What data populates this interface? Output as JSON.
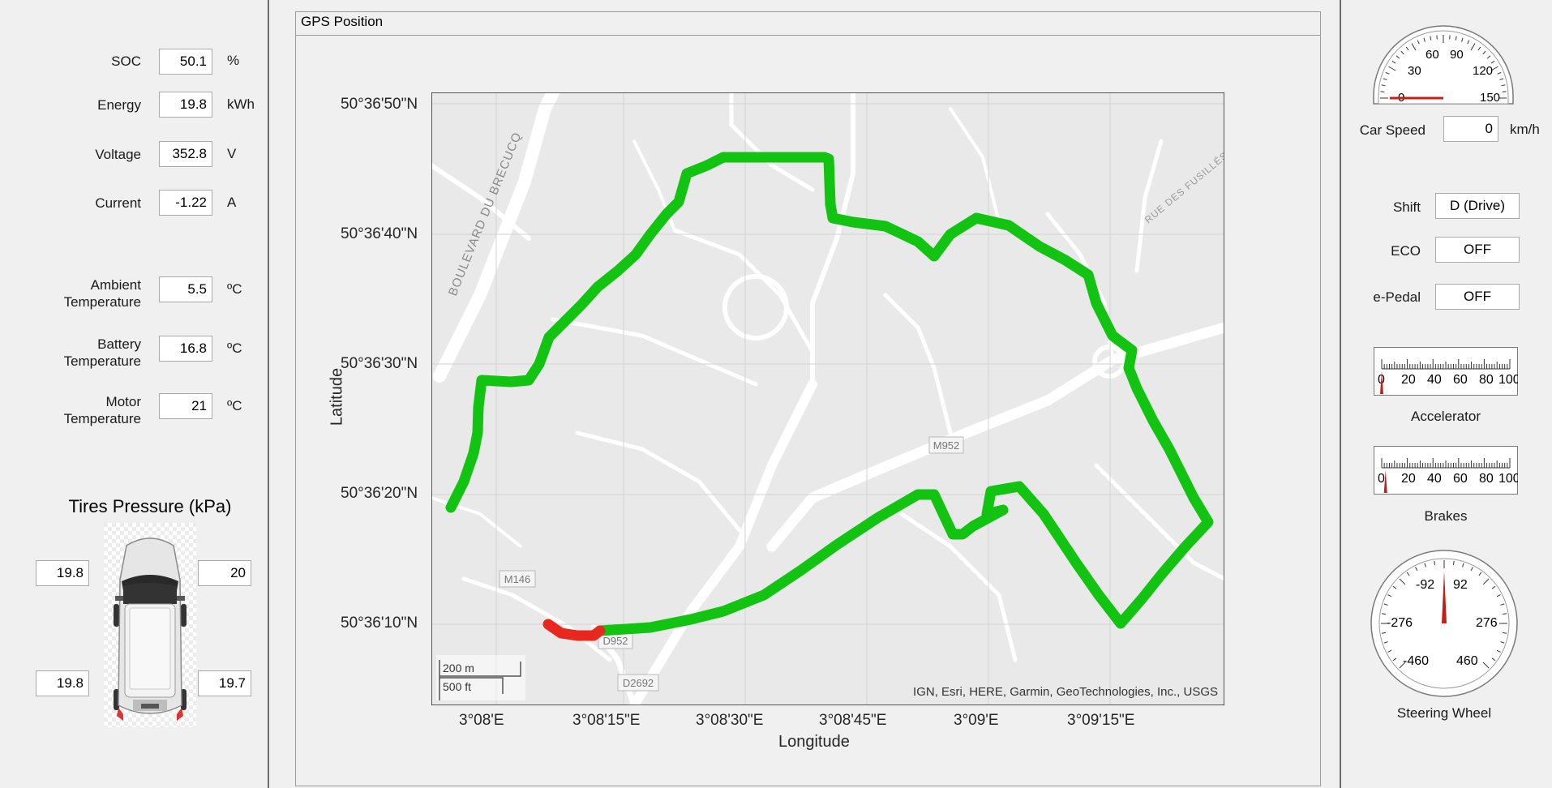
{
  "left_panel": {
    "soc": {
      "label": "SOC",
      "value": "50.1",
      "unit": "%"
    },
    "energy": {
      "label": "Energy",
      "value": "19.8",
      "unit": "kWh"
    },
    "voltage": {
      "label": "Voltage",
      "value": "352.8",
      "unit": "V"
    },
    "current": {
      "label": "Current",
      "value": "-1.22",
      "unit": "A"
    },
    "ambient_temp": {
      "label_line1": "Ambient",
      "label_line2": "Temperature",
      "value": "5.5",
      "unit": "ºC"
    },
    "battery_temp": {
      "label_line1": "Battery",
      "label_line2": "Temperature",
      "value": "16.8",
      "unit": "ºC"
    },
    "motor_temp": {
      "label_line1": "Motor",
      "label_line2": "Temperature",
      "value": "21",
      "unit": "ºC"
    },
    "tires": {
      "title": "Tires Pressure (kPa)",
      "front_left": "19.8",
      "front_right": "20",
      "rear_left": "19.8",
      "rear_right": "19.7"
    }
  },
  "gps_panel": {
    "title": "GPS Position",
    "xlabel": "Longitude",
    "ylabel": "Latitude",
    "y_ticks": [
      "50°36'50\"N",
      "50°36'40\"N",
      "50°36'30\"N",
      "50°36'20\"N",
      "50°36'10\"N"
    ],
    "x_ticks": [
      "3°08'E",
      "3°08'15\"E",
      "3°08'30\"E",
      "3°08'45\"E",
      "3°09'E",
      "3°09'15\"E"
    ],
    "attribution": "IGN, Esri, HERE, Garmin, GeoTechnologies, Inc., USGS",
    "scale_top": "200 m",
    "scale_bottom": "500 ft",
    "map_labels": {
      "blvd": "BOULEVARD DU BRECUCQ",
      "rue": "RUE DES FUSILLÉS",
      "m952": "M952",
      "m146": "M146",
      "d952": "D952",
      "d2692": "D2692"
    },
    "track_color": "#12c312",
    "track_recent_color": "#e8281e"
  },
  "right_panel": {
    "car_speed": {
      "label": "Car Speed",
      "value": "0",
      "unit": "km/h",
      "gauge_ticks": [
        "0",
        "30",
        "60",
        "90",
        "120",
        "150"
      ],
      "gauge_value": 0
    },
    "shift": {
      "label": "Shift",
      "value": "D (Drive)"
    },
    "eco": {
      "label": "ECO",
      "value": "OFF"
    },
    "epedal": {
      "label": "e-Pedal",
      "value": "OFF"
    },
    "accelerator": {
      "label": "Accelerator",
      "ticks": [
        "0",
        "20",
        "40",
        "60",
        "80",
        "100"
      ],
      "value": 0
    },
    "brakes": {
      "label": "Brakes",
      "ticks": [
        "0",
        "20",
        "40",
        "60",
        "80",
        "100"
      ],
      "value": 3
    },
    "steering": {
      "label": "Steering Wheel",
      "ticks": [
        "-460",
        "-276",
        "-92",
        "92",
        "276",
        "460"
      ],
      "value": 0
    }
  }
}
